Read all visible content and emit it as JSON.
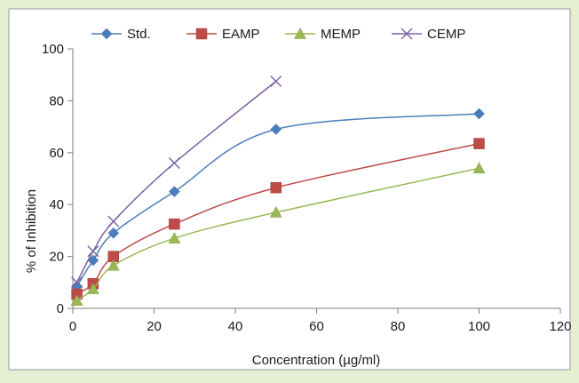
{
  "chart_data": {
    "type": "line",
    "title": "",
    "xlabel": "Concentration (µg/ml)",
    "ylabel": "% of Inhibition",
    "xlim": [
      0,
      120
    ],
    "ylim": [
      0,
      100
    ],
    "xticks": [
      0,
      20,
      40,
      60,
      80,
      100,
      120
    ],
    "yticks": [
      0,
      20,
      40,
      60,
      80,
      100
    ],
    "grid": false,
    "legend": "top",
    "series": [
      {
        "name": "Std.",
        "color": "#4a7ebb",
        "marker": "diamond",
        "x": [
          1,
          5,
          10,
          25,
          50,
          100
        ],
        "y": [
          8.5,
          18.5,
          29,
          45,
          69,
          75
        ]
      },
      {
        "name": "EAMP",
        "color": "#be4b48",
        "marker": "square",
        "x": [
          1,
          5,
          10,
          25,
          50,
          100
        ],
        "y": [
          5.5,
          9.5,
          20,
          32.5,
          46.5,
          63.5
        ]
      },
      {
        "name": "MEMP",
        "color": "#98b954",
        "marker": "triangle",
        "x": [
          1,
          5,
          10,
          25,
          50,
          100
        ],
        "y": [
          3,
          7.5,
          16.5,
          27,
          37,
          54
        ]
      },
      {
        "name": "CEMP",
        "color": "#7d60a0",
        "marker": "x",
        "x": [
          1,
          5,
          10,
          25,
          50
        ],
        "y": [
          10,
          22,
          33.5,
          56,
          87.5
        ]
      }
    ]
  }
}
